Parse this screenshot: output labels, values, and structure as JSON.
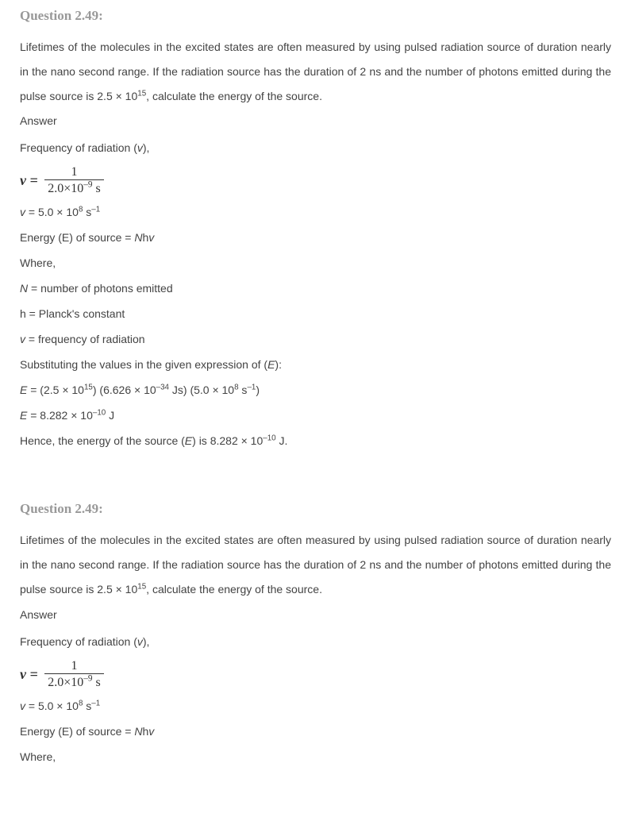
{
  "q1": {
    "heading": "Question 2.49:",
    "body": "Lifetimes of the molecules in the excited states are often measured by using pulsed radiation source of duration nearly in the nano second range. If the radiation source has the duration of 2 ns and the number of photons emitted during the pulse source is 2.5 × 10",
    "body_sup": "15",
    "body_tail": ", calculate the energy of the source.",
    "answer_label": "Answer",
    "freq_line_pre": "Frequency of radiation (",
    "freq_var": "v",
    "freq_line_post": "),",
    "formula": {
      "lhs": "v =",
      "num": "1",
      "den_val": "2.0×10",
      "den_exp": "–9",
      "den_unit": " s"
    },
    "v_val_pre": "v",
    "v_val": " = 5.0 × 10",
    "v_exp": "8",
    "v_unit_pre": " s",
    "v_unit_exp": "–1",
    "energy_source1": "Energy (E) of source = ",
    "energy_source2": "N",
    "energy_source3": "h",
    "energy_source4": "v",
    "where": "Where,",
    "N_line1": "N",
    "N_line2": " = number of photons emitted",
    "h_line": "h = Planck's constant",
    "v_line1": "v",
    "v_line2": " = frequency of radiation",
    "subst1": "Substituting the values in the given expression of (",
    "subst_E": "E",
    "subst2": "):",
    "E_calc_pre": "E",
    "E_calc_mid1": " = (2.5 × 10",
    "E_calc_exp1": "15",
    "E_calc_mid2": ") (6.626 × 10",
    "E_calc_exp2": "–34",
    "E_calc_mid3": " Js) (5.0 × 10",
    "E_calc_exp3": "8",
    "E_calc_mid4": " s",
    "E_calc_exp4": "–1",
    "E_calc_mid5": ")",
    "E_result_pre": "E",
    "E_result_mid": " = 8.282 × 10",
    "E_result_exp": "–10",
    "E_result_unit": " J",
    "hence_1": "Hence, the energy of the source (",
    "hence_E": "E",
    "hence_2": ") is 8.282 × 10",
    "hence_exp": "–10",
    "hence_3": " J."
  },
  "q2": {
    "heading": "Question 2.49:",
    "body": "Lifetimes of the molecules in the excited states are often measured by using pulsed radiation source of duration nearly in the nano second range. If the radiation source has the duration of 2 ns and the number of photons emitted during the pulse source is 2.5 × 10",
    "body_sup": "15",
    "body_tail": ", calculate the energy of the source.",
    "answer_label": "Answer",
    "freq_line_pre": "Frequency of radiation (",
    "freq_var": "v",
    "freq_line_post": "),",
    "formula": {
      "lhs": "v =",
      "num": "1",
      "den_val": "2.0×10",
      "den_exp": "–9",
      "den_unit": " s"
    },
    "v_val_pre": "v",
    "v_val": " = 5.0 × 10",
    "v_exp": "8",
    "v_unit_pre": " s",
    "v_unit_exp": "–1",
    "energy_source1": "Energy (E) of source = ",
    "energy_source2": "N",
    "energy_source3": "h",
    "energy_source4": "v",
    "where": "Where,"
  }
}
